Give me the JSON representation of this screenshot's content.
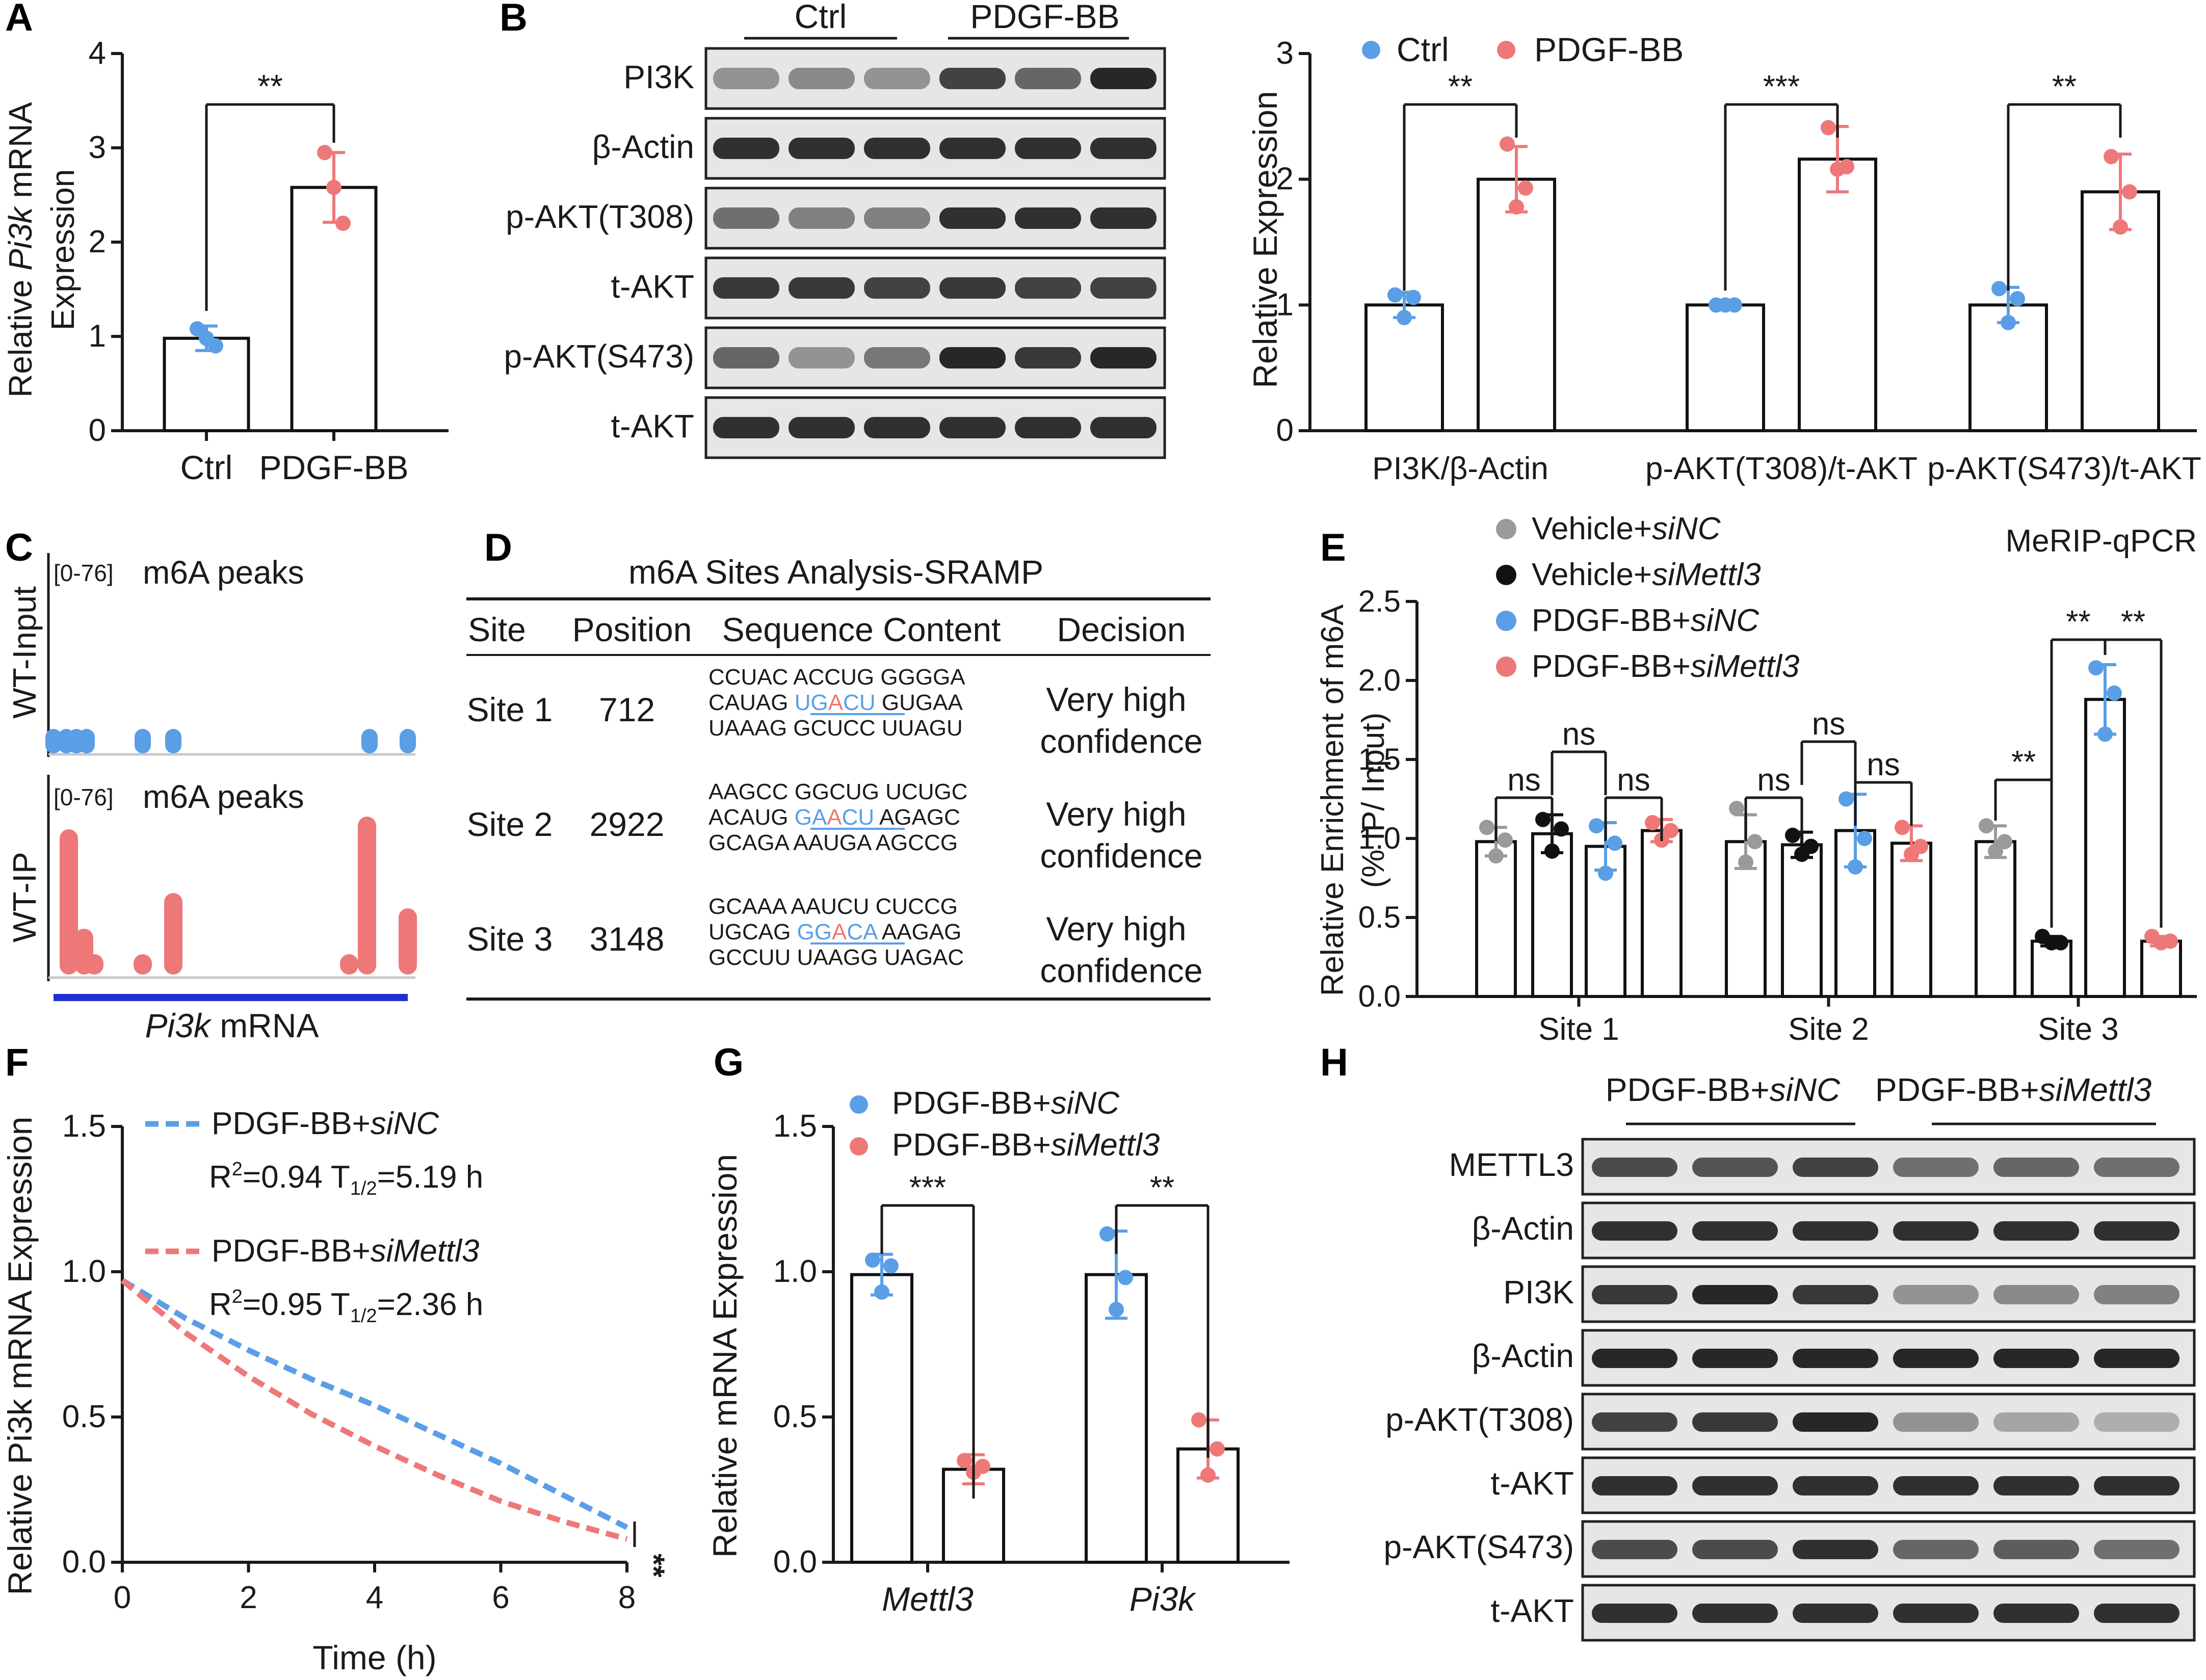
{
  "colors": {
    "ctrl": "#5a9ee6",
    "pdgf": "#ee7878",
    "gray": "#9a9a9a",
    "black": "#111111",
    "siMettl3_line": "#1f2fd0",
    "axis": "#1a1a1a"
  },
  "panels": {
    "A": {
      "label": "A",
      "ylabel_pre": "Relative ",
      "ylabel_gene": "Pi3k",
      "ylabel_post": " mRNA",
      "ylabel2": "Expression",
      "yticks": [
        "0",
        "1",
        "2",
        "3",
        "4"
      ],
      "categories": [
        "Ctrl",
        "PDGF-BB"
      ],
      "sig": "**"
    },
    "B": {
      "label": "B",
      "blot_groups": [
        "Ctrl",
        "PDGF-BB"
      ],
      "blot_rows": [
        "PI3K",
        "β-Actin",
        "p-AKT(T308)",
        "t-AKT",
        "p-AKT(S473)",
        "t-AKT"
      ],
      "legend": [
        "Ctrl",
        "PDGF-BB"
      ],
      "ylabel": "Relative Expression",
      "yticks": [
        "0",
        "1",
        "2",
        "3"
      ],
      "categories": [
        "PI3K/β-Actin",
        "p-AKT(T308)/t-AKT",
        "p-AKT(S473)/t-AKT"
      ],
      "sig": [
        "**",
        "***",
        "**"
      ]
    },
    "C": {
      "label": "C",
      "range": "[0-76]",
      "title": "m6A peaks",
      "track1": "WT-Input",
      "track2": "WT-IP",
      "gene": "Pi3k",
      "gene_suffix": " mRNA"
    },
    "D": {
      "label": "D",
      "title": "m6A Sites Analysis-SRAMP",
      "headers": [
        "Site",
        "Position",
        "Sequence Content",
        "Decision"
      ],
      "rows": [
        {
          "site": "Site 1",
          "position": "712",
          "seq": [
            [
              "CCUAC ACCUG GGGGA"
            ],
            [
              "CAUAG ",
              "U",
              "G",
              "A",
              "CU",
              " GUGAA"
            ],
            [
              "UAAAG GCUCC UUAGU"
            ]
          ],
          "decision1": "Very high",
          "decision2": "confidence"
        },
        {
          "site": "Site 2",
          "position": "2922",
          "seq": [
            [
              "AAGCC GGCUG UCUGC"
            ],
            [
              "ACAUG ",
              "G",
              "A",
              "A",
              "CU",
              "  AGAGC"
            ],
            [
              "GCAGA AAUGA  AGCCG"
            ]
          ],
          "decision1": "Very high",
          "decision2": "confidence"
        },
        {
          "site": "Site 3",
          "position": "3148",
          "seq": [
            [
              "GCAAA  AAUCU CUCCG"
            ],
            [
              "UGCAG ",
              "G",
              "G",
              "A",
              "CA",
              " AAGAG"
            ],
            [
              "GCCUU UAAGG UAGAC"
            ]
          ],
          "decision1": "Very high",
          "decision2": "confidence"
        }
      ]
    },
    "E": {
      "label": "E",
      "legend": [
        {
          "pre": "Vehicle+",
          "it": "siNC",
          "color": "#9a9a9a"
        },
        {
          "pre": "Vehicle+",
          "it": "siMettl3",
          "color": "#111111"
        },
        {
          "pre": "PDGF-BB+",
          "it": "siNC",
          "color": "#5a9ee6"
        },
        {
          "pre": "PDGF-BB+",
          "it": "siMettl3",
          "color": "#ee7878"
        }
      ],
      "corner": "MeRIP-qPCR",
      "ylabel1": "Relative Enrichment of m6A",
      "ylabel2": "(% IP/ Input)",
      "yticks": [
        "0.0",
        "0.5",
        "1.0",
        "1.5",
        "2.0",
        "2.5"
      ],
      "categories": [
        "Site 1",
        "Site 2",
        "Site 3"
      ],
      "sig_site1": [
        "ns",
        "ns",
        "ns"
      ],
      "sig_site2": [
        "ns",
        "ns",
        "ns"
      ],
      "sig_site3": [
        "**",
        "**",
        "**"
      ]
    },
    "F": {
      "label": "F",
      "ylabel": "Relative Pi3k mRNA Expression",
      "xlabel": "Time (h)",
      "yticks": [
        "0.0",
        "0.5",
        "1.0",
        "1.5"
      ],
      "xticks": [
        "0",
        "2",
        "4",
        "6",
        "8"
      ],
      "legend": [
        {
          "pre": "PDGF-BB+",
          "it": "siNC",
          "stat": "R²=0.94 T½=5.19 h",
          "r2": "R",
          "sup": "2",
          "eq1": "=0.94 T",
          "sub": "1/2",
          "eq2": "=5.19 h"
        },
        {
          "pre": "PDGF-BB+",
          "it": "siMettl3",
          "stat": "R²=0.95 T½=2.36 h",
          "r2": "R",
          "sup": "2",
          "eq1": "=0.95 T",
          "sub": "1/2",
          "eq2": "=2.36 h"
        }
      ],
      "sig": "**"
    },
    "G": {
      "label": "G",
      "legend": [
        {
          "pre": "PDGF-BB+",
          "it": "siNC"
        },
        {
          "pre": "PDGF-BB+",
          "it": "siMettl3"
        }
      ],
      "ylabel": "Relative mRNA Expression",
      "yticks": [
        "0.0",
        "0.5",
        "1.0",
        "1.5"
      ],
      "categories": [
        "Mettl3",
        "Pi3k"
      ],
      "sig": [
        "***",
        "**"
      ]
    },
    "H": {
      "label": "H",
      "groups": [
        {
          "pre": "PDGF-BB+",
          "it": "siNC"
        },
        {
          "pre": "PDGF-BB+",
          "it": "siMettl3"
        }
      ],
      "blot_rows": [
        "METTL3",
        "β-Actin",
        "PI3K",
        "β-Actin",
        "p-AKT(T308)",
        "t-AKT",
        "p-AKT(S473)",
        "t-AKT"
      ]
    }
  },
  "chart_data": [
    {
      "panel": "A",
      "type": "bar",
      "title": "",
      "ylabel": "Relative Pi3k mRNA Expression",
      "ylim": [
        0,
        4
      ],
      "categories": [
        "Ctrl",
        "PDGF-BB"
      ],
      "values": [
        0.98,
        2.58
      ],
      "sd": [
        0.13,
        0.37
      ],
      "points": [
        [
          1.08,
          0.9,
          0.98
        ],
        [
          2.95,
          2.2,
          2.58
        ]
      ]
    },
    {
      "panel": "B",
      "type": "bar",
      "ylabel": "Relative Expression",
      "ylim": [
        0,
        3
      ],
      "categories": [
        "PI3K/β-Actin",
        "p-AKT(T308)/t-AKT",
        "p-AKT(S473)/t-AKT"
      ],
      "series": [
        {
          "name": "Ctrl",
          "values": [
            1.0,
            1.0,
            1.0
          ],
          "sd": [
            0.1,
            0.02,
            0.14
          ],
          "points": [
            [
              1.08,
              1.06,
              0.9
            ],
            [
              1.0,
              1.0,
              1.0
            ],
            [
              1.13,
              1.05,
              0.86
            ]
          ]
        },
        {
          "name": "PDGF-BB",
          "values": [
            2.0,
            2.16,
            1.9
          ],
          "sd": [
            0.26,
            0.26,
            0.3
          ],
          "points": [
            [
              2.28,
              1.93,
              1.78
            ],
            [
              2.41,
              2.1,
              2.08
            ],
            [
              2.18,
              1.9,
              1.62
            ]
          ]
        }
      ]
    },
    {
      "panel": "E",
      "type": "bar",
      "ylabel": "Relative Enrichment of m6A (% IP/ Input)",
      "ylim": [
        0,
        2.5
      ],
      "categories": [
        "Site 1",
        "Site 2",
        "Site 3"
      ],
      "series": [
        {
          "name": "Vehicle+siNC",
          "values": [
            0.98,
            0.98,
            0.98
          ],
          "sd": [
            0.09,
            0.17,
            0.1
          ],
          "points": [
            [
              1.07,
              0.99,
              0.89
            ],
            [
              1.19,
              0.98,
              0.85
            ],
            [
              1.08,
              0.98,
              0.92
            ]
          ]
        },
        {
          "name": "Vehicle+siMettl3",
          "values": [
            1.03,
            0.96,
            0.35
          ],
          "sd": [
            0.12,
            0.08,
            0.03
          ],
          "points": [
            [
              1.12,
              1.06,
              0.92
            ],
            [
              1.02,
              0.95,
              0.9
            ],
            [
              0.38,
              0.34,
              0.34
            ]
          ]
        },
        {
          "name": "PDGF-BB+siNC",
          "values": [
            0.95,
            1.05,
            1.88
          ],
          "sd": [
            0.15,
            0.23,
            0.22
          ],
          "points": [
            [
              1.08,
              0.97,
              0.78
            ],
            [
              1.25,
              1.0,
              0.82
            ],
            [
              2.08,
              1.92,
              1.66
            ]
          ]
        },
        {
          "name": "PDGF-BB+siMettl3",
          "values": [
            1.05,
            0.97,
            0.35
          ],
          "sd": [
            0.07,
            0.11,
            0.03
          ],
          "points": [
            [
              1.1,
              1.05,
              0.99
            ],
            [
              1.07,
              0.95,
              0.9
            ],
            [
              0.38,
              0.35,
              0.34
            ]
          ]
        }
      ]
    },
    {
      "panel": "F",
      "type": "line",
      "xlabel": "Time (h)",
      "ylabel": "Relative Pi3k mRNA Expression",
      "xlim": [
        0,
        8
      ],
      "ylim": [
        0,
        1.5
      ],
      "series": [
        {
          "name": "PDGF-BB+siNC",
          "x": [
            0,
            1,
            2,
            3,
            4,
            5,
            6,
            7,
            8
          ],
          "y": [
            0.97,
            0.84,
            0.73,
            0.63,
            0.54,
            0.44,
            0.34,
            0.23,
            0.12
          ]
        },
        {
          "name": "PDGF-BB+siMettl3",
          "x": [
            0,
            1,
            2,
            3,
            4,
            5,
            6,
            7,
            8
          ],
          "y": [
            0.97,
            0.79,
            0.64,
            0.51,
            0.4,
            0.3,
            0.21,
            0.14,
            0.08
          ]
        }
      ]
    },
    {
      "panel": "G",
      "type": "bar",
      "ylabel": "Relative mRNA Expression",
      "ylim": [
        0,
        1.5
      ],
      "categories": [
        "Mettl3",
        "Pi3k"
      ],
      "series": [
        {
          "name": "PDGF-BB+siNC",
          "values": [
            0.99,
            0.99
          ],
          "sd": [
            0.07,
            0.15
          ],
          "points": [
            [
              1.04,
              1.02,
              0.93
            ],
            [
              1.13,
              0.98,
              0.87
            ]
          ]
        },
        {
          "name": "PDGF-BB+siMettl3",
          "values": [
            0.32,
            0.39
          ],
          "sd": [
            0.05,
            0.1
          ],
          "points": [
            [
              0.35,
              0.33,
              0.31
            ],
            [
              0.49,
              0.39,
              0.3
            ]
          ]
        }
      ]
    }
  ]
}
